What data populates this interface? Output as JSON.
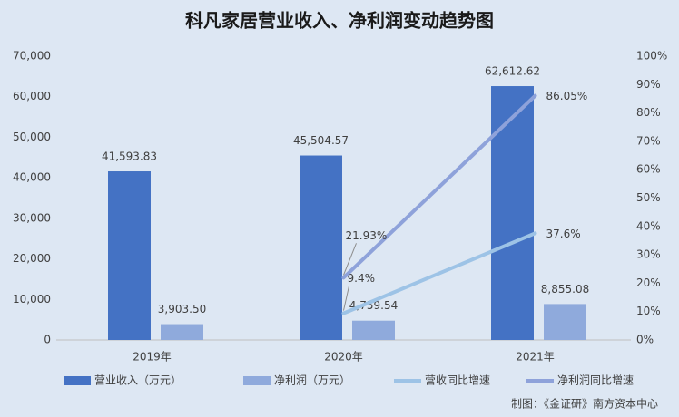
{
  "chart_data": {
    "type": "bar",
    "title": "科凡家居营业收入、净利润变动趋势图",
    "categories": [
      "2019年",
      "2020年",
      "2021年"
    ],
    "series": [
      {
        "name": "营业收入（万元）",
        "type": "bar",
        "color": "#4472c4",
        "values": [
          41593.83,
          45504.57,
          62612.62
        ],
        "value_labels": [
          "41,593.83",
          "45,504.57",
          "62,612.62"
        ]
      },
      {
        "name": "净利润（万元）",
        "type": "bar",
        "color": "#8faadc",
        "values": [
          3903.5,
          4759.54,
          8855.08
        ],
        "value_labels": [
          "3,903.50",
          "4,759.54",
          "8,855.08"
        ]
      },
      {
        "name": "营收同比增速",
        "type": "line",
        "axis": "y2",
        "color": "#9dc3e6",
        "values": [
          null,
          9.4,
          37.6
        ],
        "value_labels": [
          null,
          "9.4%",
          "37.6%"
        ]
      },
      {
        "name": "净利润同比增速",
        "type": "line",
        "axis": "y2",
        "color": "#8ea2da",
        "values": [
          null,
          21.93,
          86.05
        ],
        "value_labels": [
          null,
          "21.93%",
          "86.05%"
        ]
      }
    ],
    "ylim": [
      0,
      70000
    ],
    "yticks": [
      0,
      {
        "value": 10000,
        "label": "10,000"
      },
      {
        "value": 20000,
        "label": "20,000"
      },
      {
        "value": 30000,
        "label": "30,000"
      },
      {
        "value": 40000,
        "label": "40,000"
      },
      {
        "value": 50000,
        "label": "50,000"
      },
      {
        "value": 60000,
        "label": "60,000"
      },
      {
        "value": 70000,
        "label": "70,000"
      }
    ],
    "y2lim": [
      0,
      100
    ],
    "y2ticks": [
      {
        "value": 0,
        "label": "0%"
      },
      {
        "value": 10,
        "label": "10%"
      },
      {
        "value": 20,
        "label": "20%"
      },
      {
        "value": 30,
        "label": "30%"
      },
      {
        "value": 40,
        "label": "40%"
      },
      {
        "value": 50,
        "label": "50%"
      },
      {
        "value": 60,
        "label": "60%"
      },
      {
        "value": 70,
        "label": "70%"
      },
      {
        "value": 80,
        "label": "80%"
      },
      {
        "value": 90,
        "label": "90%"
      },
      {
        "value": 100,
        "label": "100%"
      }
    ],
    "source": "制图：《金证研》南方资本中心"
  }
}
